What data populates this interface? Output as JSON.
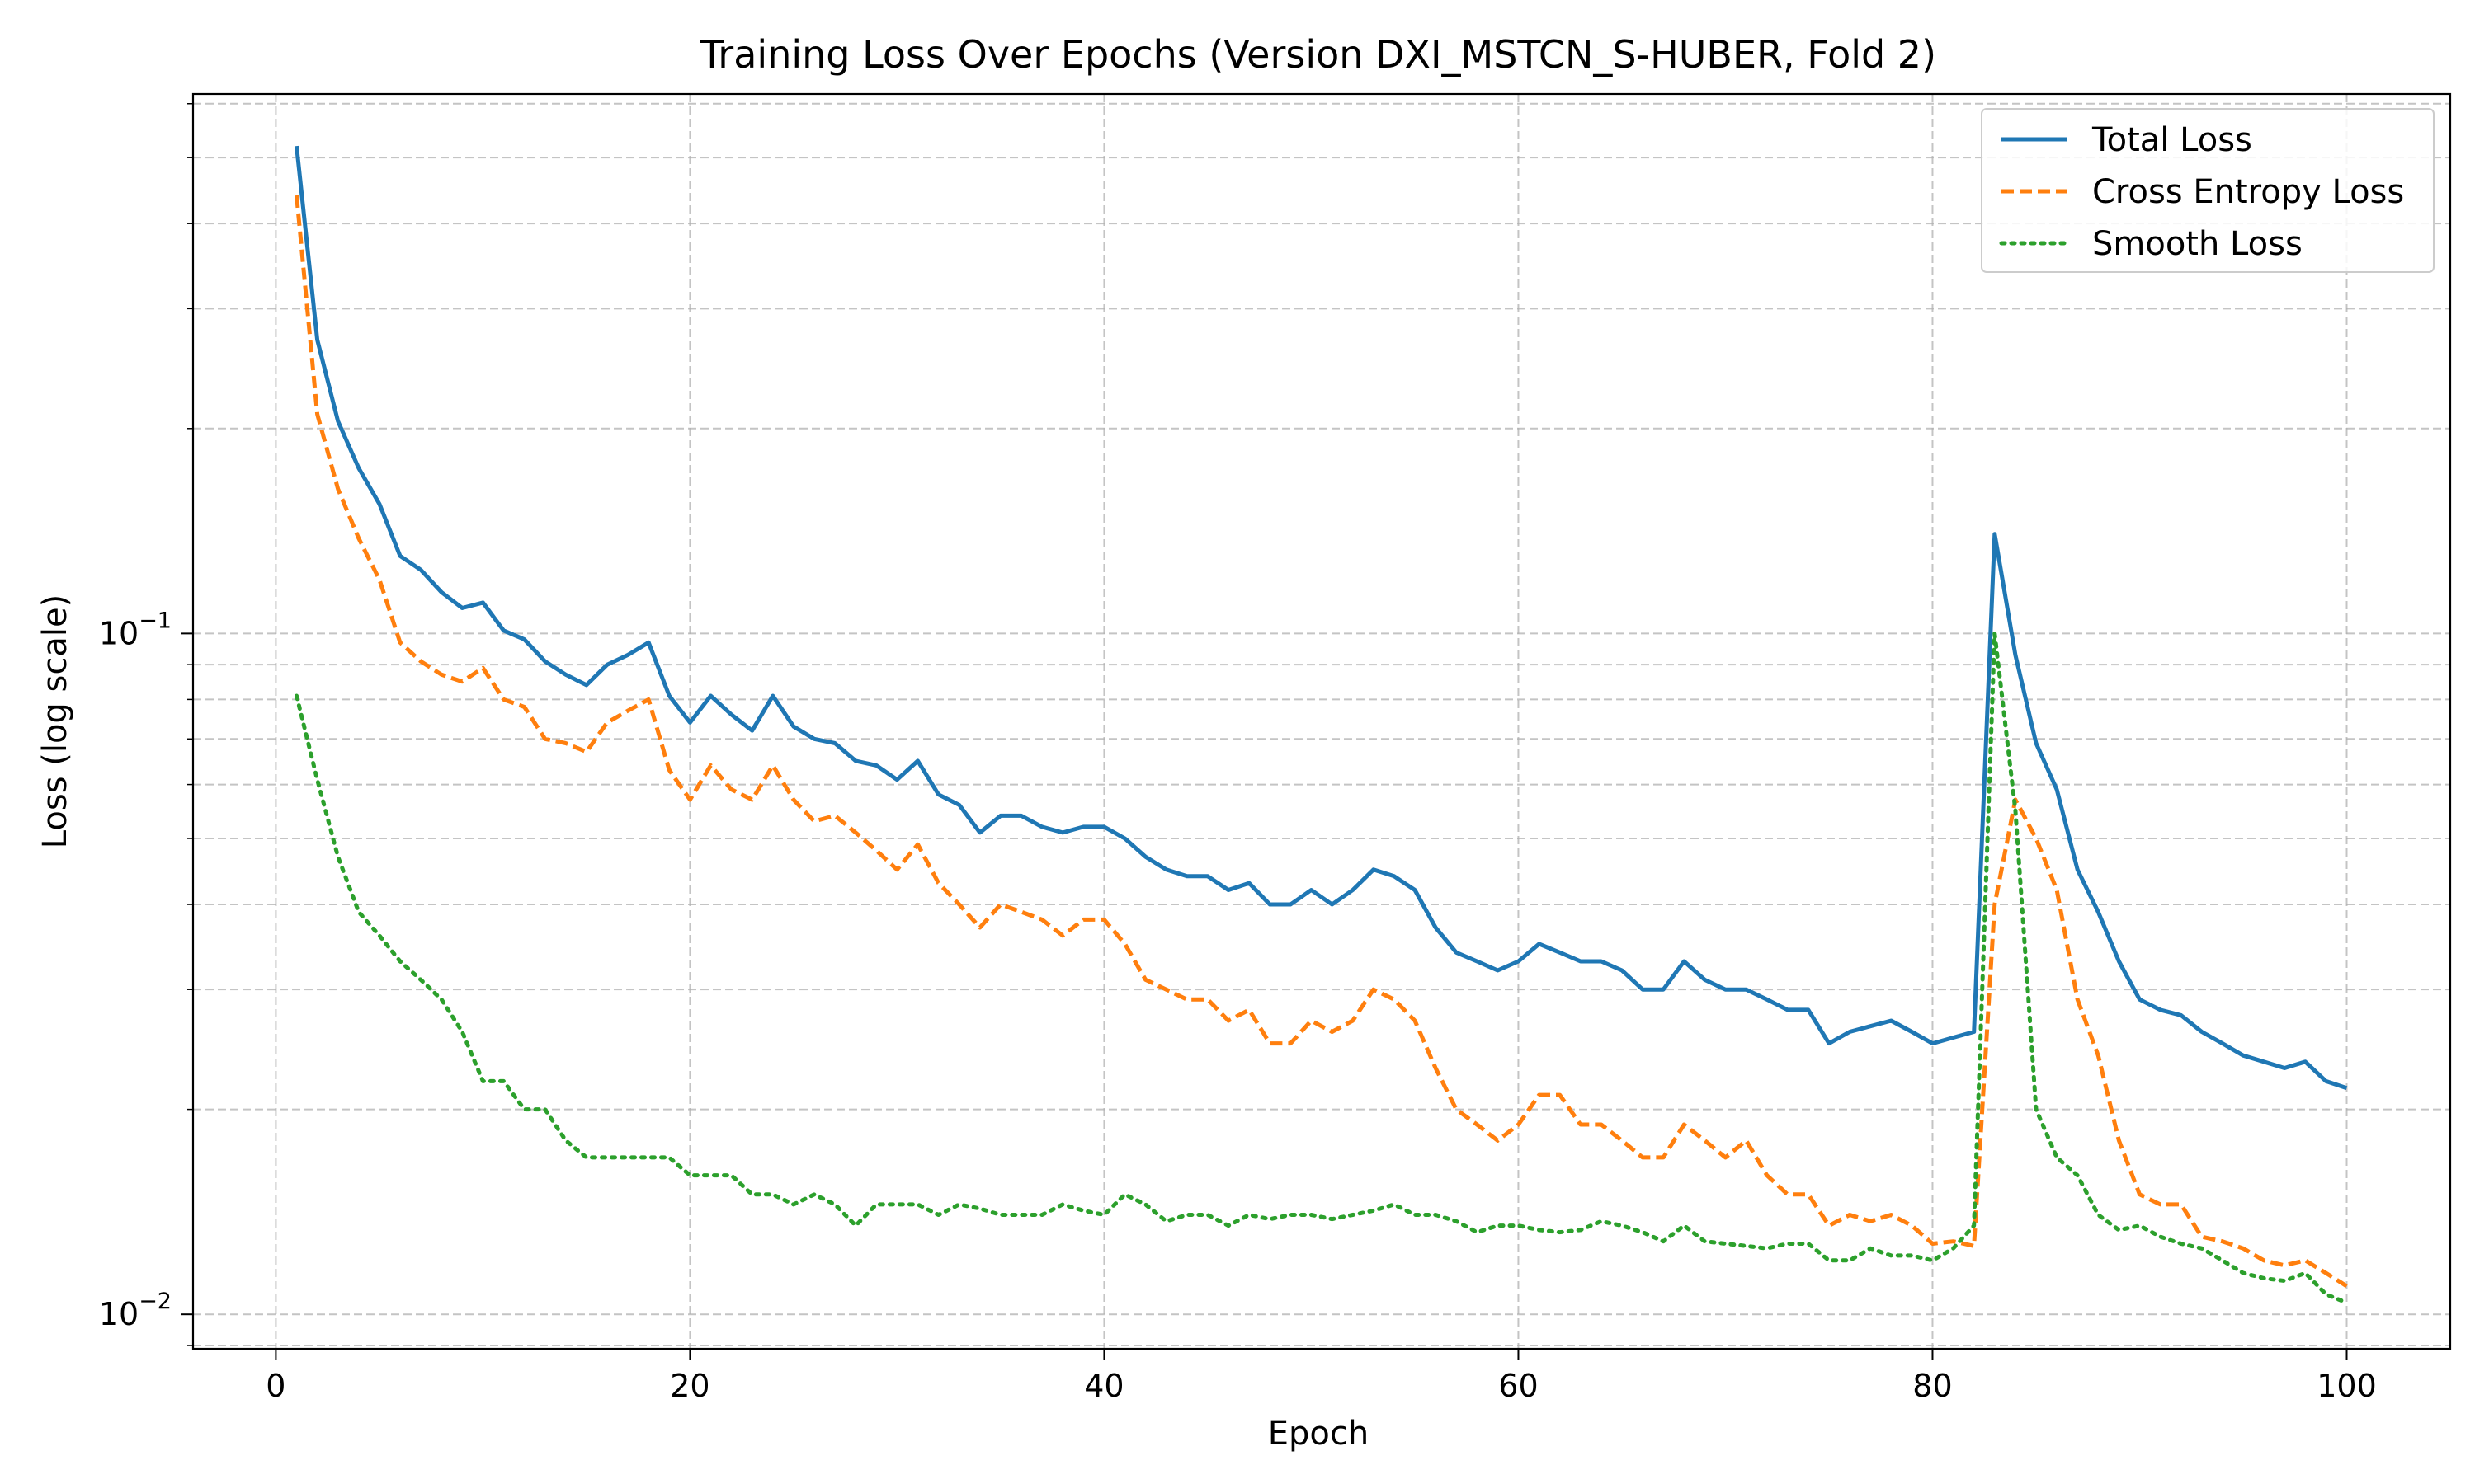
{
  "chart_data": {
    "type": "line",
    "title": "Training Loss Over Epochs (Version DXI_MSTCN_S-HUBER, Fold 2)",
    "xlabel": "Epoch",
    "ylabel": "Loss (log scale)",
    "xlim": [
      -4,
      105
    ],
    "ylim": [
      0.0089,
      0.62
    ],
    "yscale": "log",
    "grid": true,
    "legend_position": "top-right",
    "x_ticks": [
      0,
      20,
      40,
      60,
      80,
      100
    ],
    "y_ticks": [
      {
        "value": 0.01,
        "base": "10",
        "exp": "−2"
      },
      {
        "value": 0.1,
        "base": "10",
        "exp": "−1"
      }
    ],
    "x": [
      1,
      2,
      3,
      4,
      5,
      6,
      7,
      8,
      9,
      10,
      11,
      12,
      13,
      14,
      15,
      16,
      17,
      18,
      19,
      20,
      21,
      22,
      23,
      24,
      25,
      26,
      27,
      28,
      29,
      30,
      31,
      32,
      33,
      34,
      35,
      36,
      37,
      38,
      39,
      40,
      41,
      42,
      43,
      44,
      45,
      46,
      47,
      48,
      49,
      50,
      51,
      52,
      53,
      54,
      55,
      56,
      57,
      58,
      59,
      60,
      61,
      62,
      63,
      64,
      65,
      66,
      67,
      68,
      69,
      70,
      71,
      72,
      73,
      74,
      75,
      76,
      77,
      78,
      79,
      80,
      81,
      82,
      83,
      84,
      85,
      86,
      87,
      88,
      89,
      90,
      91,
      92,
      93,
      94,
      95,
      96,
      97,
      98,
      99,
      100
    ],
    "series": [
      {
        "name": "Total Loss",
        "color": "#1f77b4",
        "dash": "solid",
        "values": [
          0.52,
          0.27,
          0.205,
          0.175,
          0.155,
          0.13,
          0.124,
          0.115,
          0.109,
          0.111,
          0.101,
          0.098,
          0.091,
          0.087,
          0.084,
          0.09,
          0.093,
          0.097,
          0.081,
          0.074,
          0.081,
          0.076,
          0.072,
          0.081,
          0.073,
          0.07,
          0.069,
          0.065,
          0.064,
          0.061,
          0.065,
          0.058,
          0.056,
          0.051,
          0.054,
          0.054,
          0.052,
          0.051,
          0.052,
          0.052,
          0.05,
          0.047,
          0.045,
          0.044,
          0.044,
          0.042,
          0.043,
          0.04,
          0.04,
          0.042,
          0.04,
          0.042,
          0.045,
          0.044,
          0.042,
          0.037,
          0.034,
          0.033,
          0.032,
          0.033,
          0.035,
          0.034,
          0.033,
          0.033,
          0.032,
          0.03,
          0.03,
          0.033,
          0.031,
          0.03,
          0.03,
          0.029,
          0.028,
          0.028,
          0.025,
          0.026,
          0.0265,
          0.027,
          0.026,
          0.025,
          0.0255,
          0.026,
          0.14,
          0.093,
          0.069,
          0.059,
          0.045,
          0.039,
          0.033,
          0.029,
          0.028,
          0.0275,
          0.026,
          0.025,
          0.024,
          0.0235,
          0.023,
          0.0235,
          0.022,
          0.0215
        ]
      },
      {
        "name": "Cross Entropy Loss",
        "color": "#ff7f0e",
        "dash": "dashed",
        "values": [
          0.44,
          0.21,
          0.163,
          0.138,
          0.12,
          0.097,
          0.091,
          0.087,
          0.085,
          0.089,
          0.08,
          0.078,
          0.07,
          0.069,
          0.067,
          0.074,
          0.077,
          0.08,
          0.063,
          0.057,
          0.064,
          0.059,
          0.057,
          0.064,
          0.057,
          0.053,
          0.054,
          0.051,
          0.048,
          0.045,
          0.049,
          0.043,
          0.04,
          0.037,
          0.04,
          0.039,
          0.038,
          0.036,
          0.038,
          0.038,
          0.035,
          0.031,
          0.03,
          0.029,
          0.029,
          0.027,
          0.028,
          0.025,
          0.025,
          0.027,
          0.026,
          0.027,
          0.03,
          0.029,
          0.027,
          0.023,
          0.02,
          0.019,
          0.018,
          0.019,
          0.021,
          0.021,
          0.019,
          0.019,
          0.018,
          0.017,
          0.017,
          0.019,
          0.018,
          0.017,
          0.018,
          0.016,
          0.015,
          0.015,
          0.0135,
          0.014,
          0.0137,
          0.014,
          0.0135,
          0.0127,
          0.0128,
          0.0126,
          0.04,
          0.057,
          0.05,
          0.042,
          0.029,
          0.024,
          0.018,
          0.015,
          0.0145,
          0.0145,
          0.013,
          0.0128,
          0.0125,
          0.012,
          0.0118,
          0.012,
          0.0115,
          0.011
        ]
      },
      {
        "name": "Smooth Loss",
        "color": "#2ca02c",
        "dash": "dotted",
        "values": [
          0.081,
          0.061,
          0.047,
          0.039,
          0.036,
          0.033,
          0.031,
          0.029,
          0.026,
          0.022,
          0.022,
          0.02,
          0.02,
          0.018,
          0.017,
          0.017,
          0.017,
          0.017,
          0.017,
          0.016,
          0.016,
          0.016,
          0.015,
          0.015,
          0.0145,
          0.015,
          0.0145,
          0.0135,
          0.0145,
          0.0145,
          0.0145,
          0.014,
          0.0145,
          0.0143,
          0.014,
          0.014,
          0.014,
          0.0145,
          0.0142,
          0.014,
          0.015,
          0.0145,
          0.0137,
          0.014,
          0.014,
          0.0135,
          0.014,
          0.0138,
          0.014,
          0.014,
          0.0138,
          0.014,
          0.0142,
          0.0145,
          0.014,
          0.014,
          0.0137,
          0.0132,
          0.0135,
          0.0135,
          0.0133,
          0.0132,
          0.0133,
          0.0137,
          0.0135,
          0.0132,
          0.0128,
          0.0135,
          0.0128,
          0.0127,
          0.0126,
          0.0125,
          0.0127,
          0.0127,
          0.012,
          0.012,
          0.0125,
          0.0122,
          0.0122,
          0.012,
          0.0125,
          0.0135,
          0.1,
          0.055,
          0.02,
          0.017,
          0.016,
          0.014,
          0.0133,
          0.0135,
          0.013,
          0.0127,
          0.0125,
          0.012,
          0.0115,
          0.0113,
          0.0112,
          0.0115,
          0.0107,
          0.0104
        ]
      }
    ]
  }
}
